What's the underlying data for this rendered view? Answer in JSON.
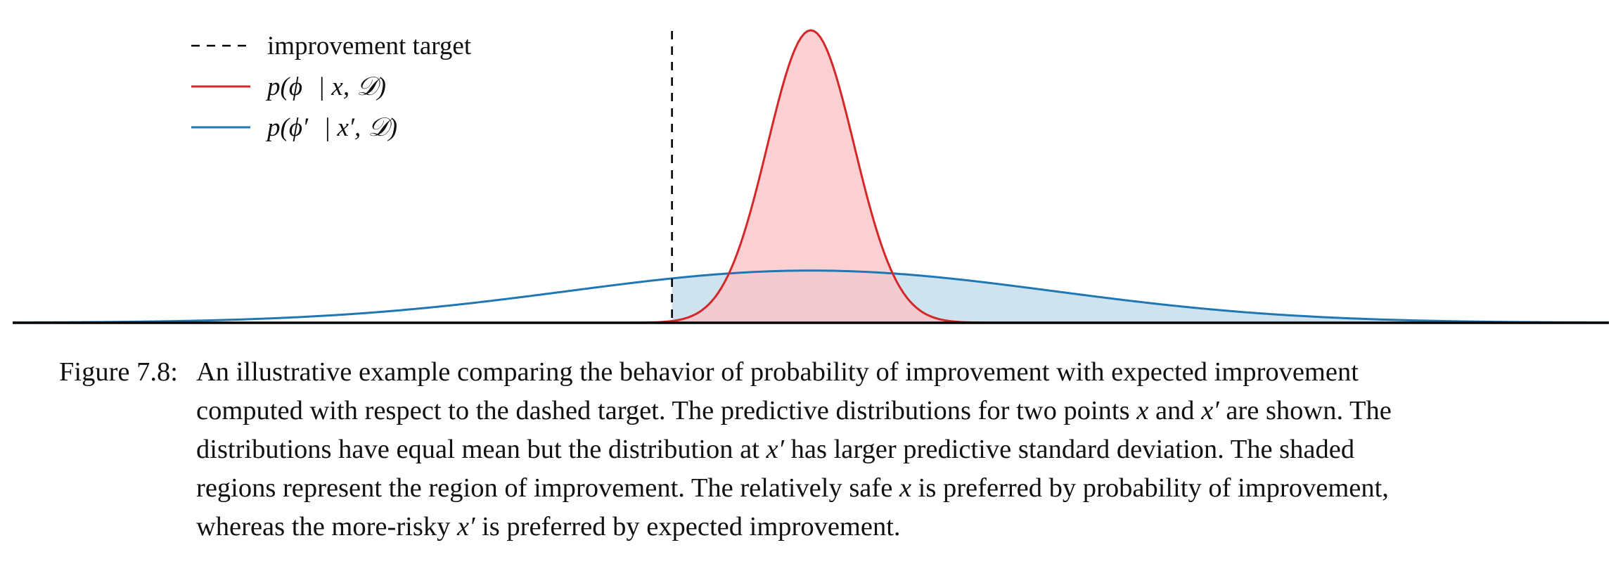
{
  "chart_data": {
    "type": "area",
    "xlim": [
      -4.6,
      4.6
    ],
    "ylim": [
      0,
      1.0
    ],
    "target": {
      "x": -0.8,
      "label": "improvement target",
      "style": "dashed",
      "color": "#000000"
    },
    "series": [
      {
        "name": "p(ϕ | x, 𝒟)",
        "label_parts": [
          "p(ϕ",
          "| x,",
          "𝒟)"
        ],
        "mean": 0,
        "sd": 0.25,
        "scale": 0.1,
        "color": "#d62728",
        "fill": "#f9c6c9"
      },
      {
        "name": "p(ϕ′ | x′, 𝒟)",
        "label_parts": [
          "p(ϕ′",
          "| x′,",
          "𝒟)"
        ],
        "mean": 0,
        "sd": 1.4,
        "scale": 0.1,
        "color": "#1f77b4",
        "fill": "#cfe3ef"
      }
    ],
    "shade_from": "target",
    "legend": "top-left",
    "grid": false
  },
  "caption": {
    "label": "Figure 7.8:",
    "lines": [
      [
        "An illustrative example comparing the behavior of probability of improvement with expected improvement"
      ],
      [
        "computed with respect to the dashed target. The predictive distributions for two points ",
        {
          "m": "x"
        },
        " and ",
        {
          "m": "x′"
        },
        " are shown. The"
      ],
      [
        "distributions have equal mean but the distribution at ",
        {
          "m": "x′"
        },
        " has larger predictive standard deviation. The shaded"
      ],
      [
        "regions represent the region of improvement. The relatively safe ",
        {
          "m": "x"
        },
        " is preferred by probability of improvement,"
      ],
      [
        "whereas the more-risky ",
        {
          "m": "x′"
        },
        " is preferred by expected improvement."
      ]
    ]
  }
}
